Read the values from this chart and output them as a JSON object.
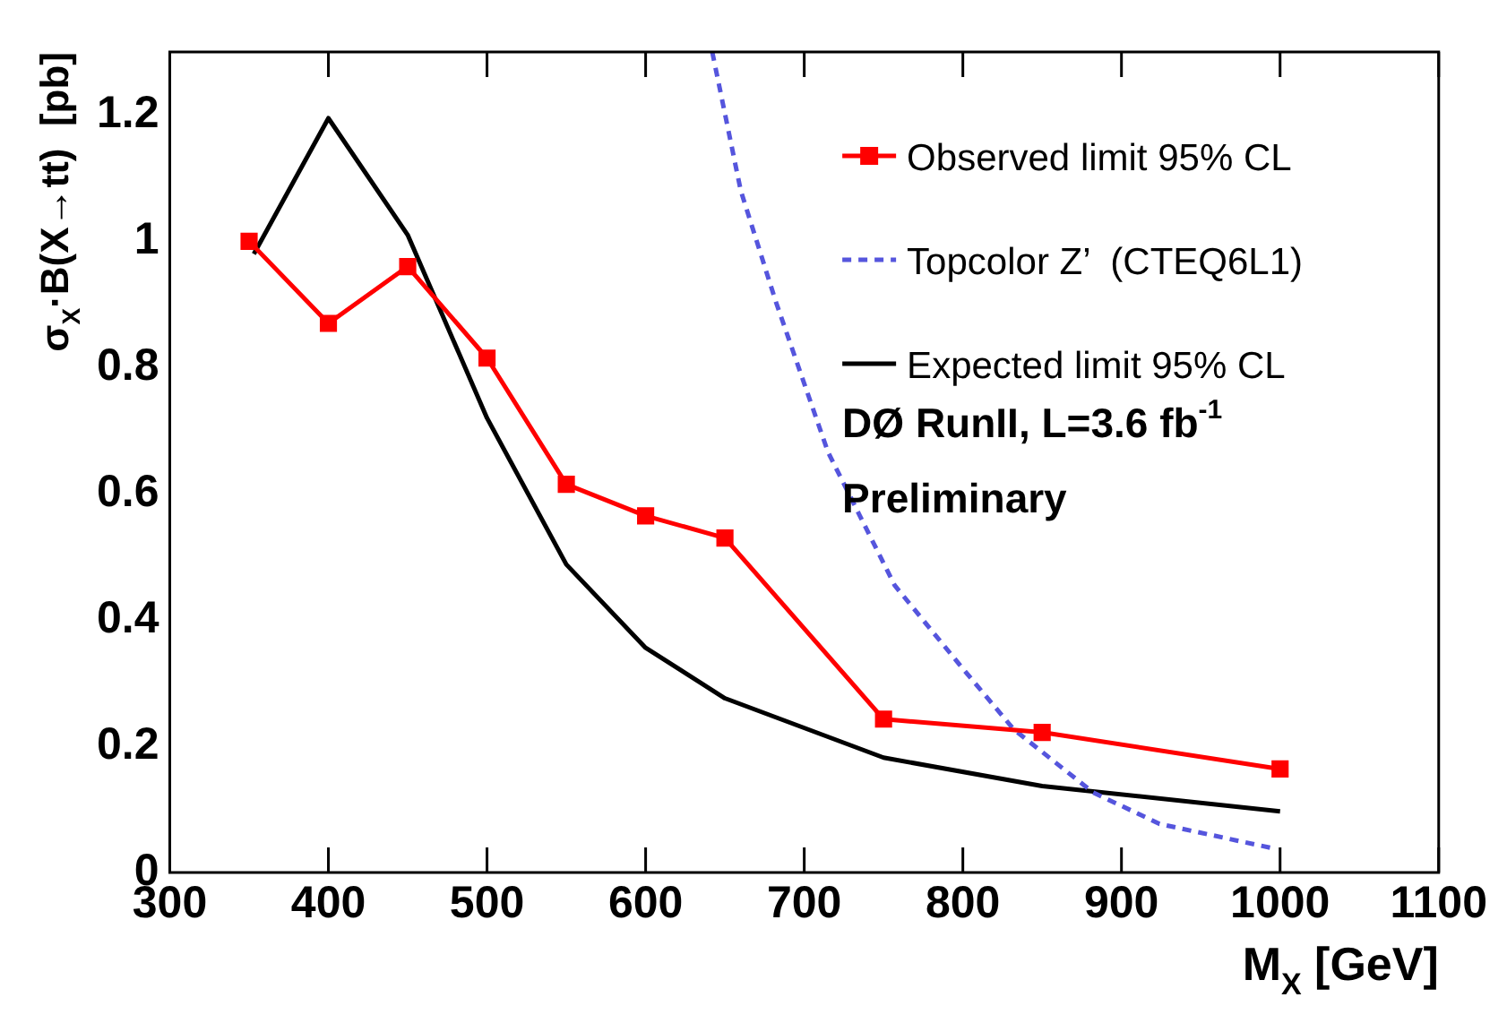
{
  "chart_data": {
    "type": "line",
    "xlabel": "M$_{X}$ [GeV]",
    "ylabel": "σ$_{X}$·B(X→tt)  [pb]",
    "xlim": [
      300,
      1100
    ],
    "xticks": [
      300,
      400,
      500,
      600,
      700,
      800,
      900,
      1000,
      1100
    ],
    "ylim": [
      0,
      1.3
    ],
    "yticks": [
      0,
      0.2,
      0.4,
      0.6,
      0.8,
      1,
      1.2
    ],
    "grid": false,
    "legend": "top right",
    "annotations": [
      "DØ RunII, L=3.6 fb$^{-1}$",
      "Preliminary"
    ],
    "series": [
      {
        "name": "Observed limit 95% CL",
        "color": "#ff0000",
        "marker": "square",
        "line_style": "solid",
        "x": [
          350,
          400,
          450,
          500,
          550,
          600,
          650,
          750,
          850,
          1000
        ],
        "values": [
          1.0,
          0.87,
          0.96,
          0.815,
          0.615,
          0.565,
          0.53,
          0.243,
          0.222,
          0.164
        ]
      },
      {
        "name": "Topcolor Z’  (CTEQ6L1)",
        "color": "#5555dd",
        "marker": "none",
        "line_style": "dashed",
        "x": [
          642,
          660,
          682,
          715,
          757,
          799,
          832,
          882,
          924,
          998
        ],
        "values": [
          1.3,
          1.08,
          0.905,
          0.666,
          0.455,
          0.326,
          0.227,
          0.127,
          0.077,
          0.037
        ]
      },
      {
        "name": "Expected limit 95% CL",
        "color": "#000000",
        "marker": "none",
        "line_style": "solid",
        "x": [
          353,
          400,
          450,
          500,
          550,
          600,
          650,
          750,
          850,
          1000
        ],
        "values": [
          0.98,
          1.195,
          1.01,
          0.72,
          0.488,
          0.356,
          0.276,
          0.182,
          0.137,
          0.097
        ]
      }
    ]
  }
}
